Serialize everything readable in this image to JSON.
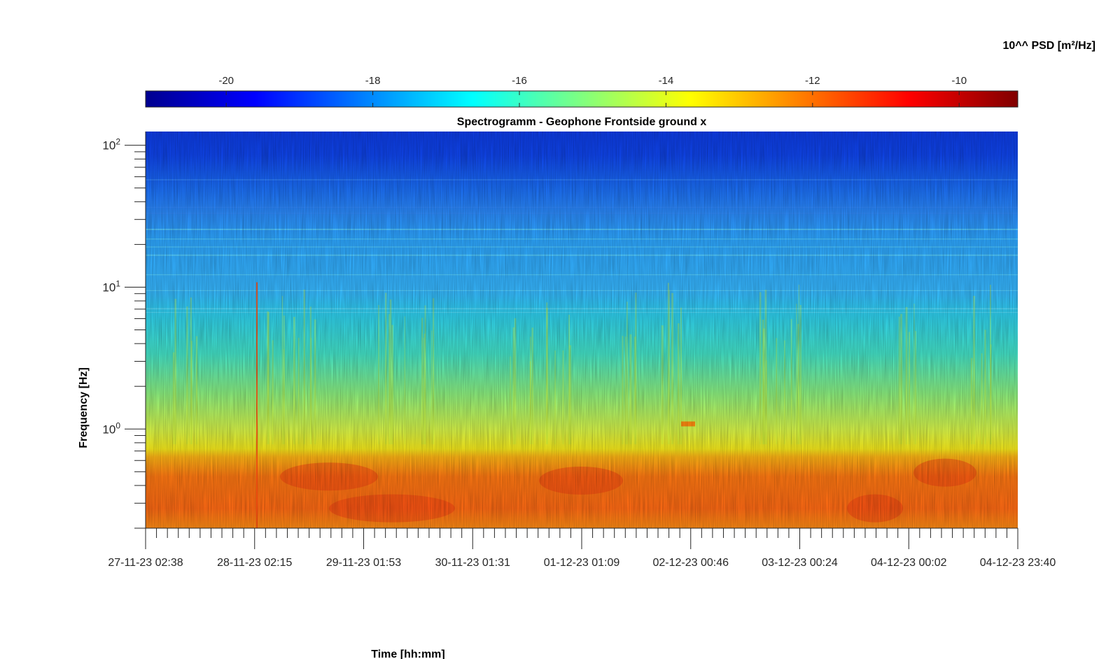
{
  "chart_data": {
    "type": "heatmap",
    "title": "Spectrogramm - Geophone Frontside ground x",
    "xlabel": "Time [hh:mm]",
    "ylabel": "Frequency [Hz]",
    "x_tick_labels": [
      "27-11-23 02:38",
      "28-11-23 02:15",
      "29-11-23 01:53",
      "30-11-23 01:31",
      "01-12-23 01:09",
      "02-12-23 00:46",
      "03-12-23 00:24",
      "04-12-23 00:02",
      "04-12-23 23:40"
    ],
    "y_scale": "log",
    "ylim": [
      0.2,
      125
    ],
    "y_tick_labels": [
      {
        "value": 1,
        "base": "10",
        "exp": "0"
      },
      {
        "value": 10,
        "base": "10",
        "exp": "1"
      },
      {
        "value": 100,
        "base": "10",
        "exp": "2"
      }
    ],
    "colorbar": {
      "label": "10^^ PSD [m²/Hz]",
      "range": [
        -21.1,
        -9.2
      ],
      "ticks": [
        -20,
        -18,
        -16,
        -14,
        -12,
        -10
      ],
      "tick_labels": [
        "-20",
        "-18",
        "-16",
        "-14",
        "-12",
        "-10"
      ],
      "colormap": "jet",
      "location": "top"
    },
    "log_psd_profile": [
      {
        "freq_hz": 0.2,
        "log_psd": -11.1
      },
      {
        "freq_hz": 0.3,
        "log_psd": -11.3
      },
      {
        "freq_hz": 0.5,
        "log_psd": -11.7
      },
      {
        "freq_hz": 0.65,
        "log_psd": -13.2
      },
      {
        "freq_hz": 1,
        "log_psd": -14.2
      },
      {
        "freq_hz": 3,
        "log_psd": -15.4
      },
      {
        "freq_hz": 6,
        "log_psd": -16.6
      },
      {
        "freq_hz": 10,
        "log_psd": -17.1
      },
      {
        "freq_hz": 20,
        "log_psd": -17.6
      },
      {
        "freq_hz": 30,
        "log_psd": -18.1
      },
      {
        "freq_hz": 50,
        "log_psd": -19.4
      },
      {
        "freq_hz": 125,
        "log_psd": -20.2
      }
    ],
    "grid": false
  }
}
